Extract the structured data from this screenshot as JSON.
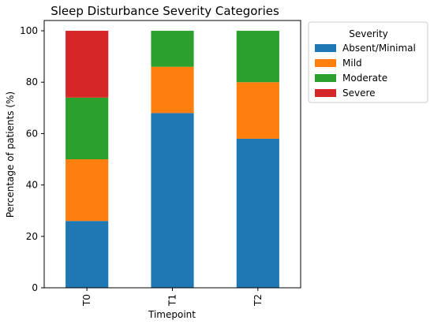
{
  "chart_data": {
    "type": "bar",
    "stacked": true,
    "title": "Sleep Disturbance Severity Categories",
    "xlabel": "Timepoint",
    "ylabel": "Percentage of patients (%)",
    "categories": [
      "T0",
      "T1",
      "T2"
    ],
    "ylim": [
      0,
      104
    ],
    "yticks": [
      0,
      20,
      40,
      60,
      80,
      100
    ],
    "grid": false,
    "legend": {
      "title": "Severity",
      "placement": "outside-top-right"
    },
    "series": [
      {
        "name": "Absent/Minimal",
        "color": "#1f77b4",
        "values": [
          26,
          68,
          58
        ]
      },
      {
        "name": "Mild",
        "color": "#ff7f0e",
        "values": [
          24,
          18,
          22
        ]
      },
      {
        "name": "Moderate",
        "color": "#2ca02c",
        "values": [
          24,
          14,
          20
        ]
      },
      {
        "name": "Severe",
        "color": "#d62728",
        "values": [
          26,
          0,
          0
        ]
      }
    ]
  }
}
